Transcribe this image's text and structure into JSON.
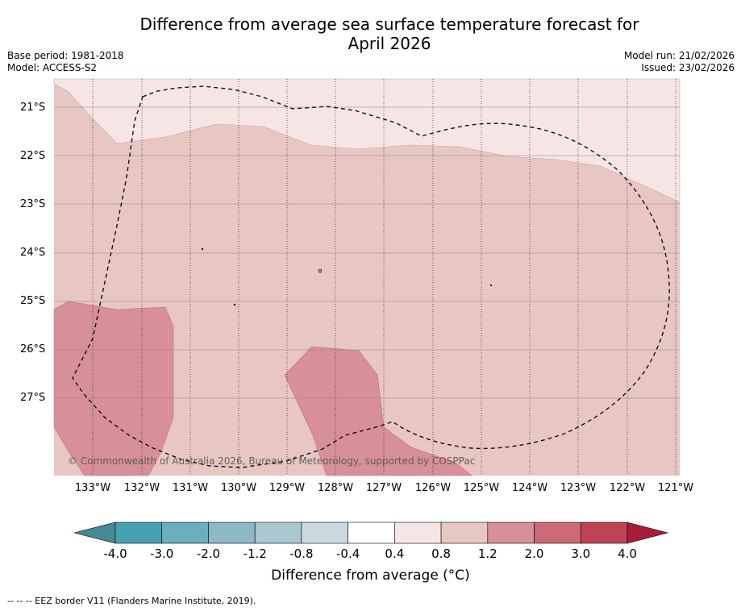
{
  "title_line1": "Difference from average sea surface temperature forecast for",
  "title_line2": "April 2026",
  "meta": {
    "base_period": "Base period: 1981-2018",
    "model": "Model: ACCESS-S2",
    "model_run": "Model run: 21/02/2026",
    "issued": "Issued: 23/02/2026"
  },
  "map": {
    "lat_labels": [
      "21°S",
      "22°S",
      "23°S",
      "24°S",
      "25°S",
      "26°S",
      "27°S"
    ],
    "lon_labels": [
      "133°W",
      "132°W",
      "131°W",
      "130°W",
      "129°W",
      "128°W",
      "127°W",
      "126°W",
      "125°W",
      "124°W",
      "123°W",
      "122°W",
      "121°W"
    ],
    "copyright": "© Commonwealth of Australia 2026, Bureau of Meteorology, supported by COSPPac"
  },
  "legend": {
    "tick_labels": [
      "-4.0",
      "-3.0",
      "-2.0",
      "-1.2",
      "-0.8",
      "-0.4",
      "0.4",
      "0.8",
      "1.2",
      "2.0",
      "3.0",
      "4.0"
    ],
    "colors": [
      "#478a95",
      "#47a0b3",
      "#6aafbd",
      "#8db9c6",
      "#a9c8cf",
      "#ccd9e0",
      "#ffffff",
      "#f5e6e5",
      "#e8c6c2",
      "#d78f98",
      "#cc6a77",
      "#be4455",
      "#a91d3c"
    ],
    "title": "Difference from average (°C)"
  },
  "footnote": "--  --  -- EEZ border V11 (Flanders Marine Institute, 2019)."
}
